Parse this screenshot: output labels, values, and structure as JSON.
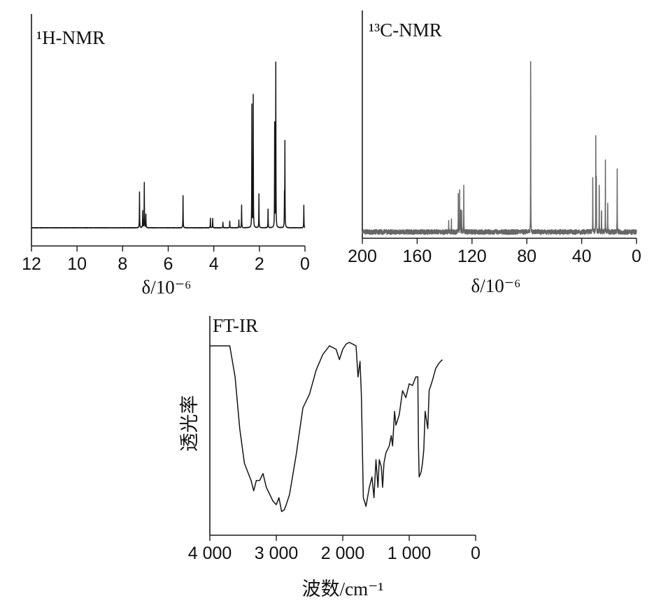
{
  "chart_data": [
    {
      "type": "line",
      "title": "¹H-NMR",
      "xlabel": "δ/10⁻⁶",
      "ylabel": "",
      "x_reversed": true,
      "xlim": [
        12,
        0
      ],
      "xticks": [
        "12",
        "10",
        "8",
        "6",
        "4",
        "2",
        "0"
      ],
      "xtick_values": [
        12,
        10,
        8,
        6,
        4,
        2,
        0
      ],
      "color": "#151515",
      "series": [
        {
          "peaks": [
            {
              "x": 7.26,
              "y": 0.19
            },
            {
              "x": 7.12,
              "y": 0.09
            },
            {
              "x": 7.05,
              "y": 0.24
            },
            {
              "x": 6.98,
              "y": 0.07
            },
            {
              "x": 5.35,
              "y": 0.17
            },
            {
              "x": 4.15,
              "y": 0.05
            },
            {
              "x": 4.05,
              "y": 0.05
            },
            {
              "x": 3.6,
              "y": 0.03
            },
            {
              "x": 3.3,
              "y": 0.035
            },
            {
              "x": 2.9,
              "y": 0.04
            },
            {
              "x": 2.78,
              "y": 0.12
            },
            {
              "x": 2.33,
              "y": 0.65
            },
            {
              "x": 2.27,
              "y": 0.7
            },
            {
              "x": 2.02,
              "y": 0.18
            },
            {
              "x": 1.62,
              "y": 0.1
            },
            {
              "x": 1.33,
              "y": 0.55
            },
            {
              "x": 1.28,
              "y": 0.87
            },
            {
              "x": 0.9,
              "y": 0.16
            },
            {
              "x": 0.88,
              "y": 0.45
            },
            {
              "x": 0.05,
              "y": 0.12
            }
          ]
        }
      ]
    },
    {
      "type": "line",
      "title": "¹³C-NMR",
      "xlabel": "δ/10⁻⁶",
      "ylabel": "",
      "x_reversed": true,
      "xlim": [
        200,
        0
      ],
      "xticks": [
        "200",
        "160",
        "120",
        "80",
        "40",
        "0"
      ],
      "xtick_values": [
        200,
        160,
        120,
        80,
        40,
        0
      ],
      "color": "#666666",
      "series": [
        {
          "peaks": [
            {
              "x": 137,
              "y": 0.06
            },
            {
              "x": 135,
              "y": 0.05
            },
            {
              "x": 130,
              "y": 0.17
            },
            {
              "x": 129,
              "y": 0.18
            },
            {
              "x": 128.5,
              "y": 0.14
            },
            {
              "x": 127.5,
              "y": 0.14
            },
            {
              "x": 126,
              "y": 0.22
            },
            {
              "x": 77.2,
              "y": 0.98
            },
            {
              "x": 31.9,
              "y": 0.28
            },
            {
              "x": 29.7,
              "y": 0.44
            },
            {
              "x": 29.3,
              "y": 0.24
            },
            {
              "x": 27.2,
              "y": 0.27
            },
            {
              "x": 25.5,
              "y": 0.12
            },
            {
              "x": 22.7,
              "y": 0.33
            },
            {
              "x": 21.0,
              "y": 0.12
            },
            {
              "x": 14.1,
              "y": 0.32
            }
          ]
        }
      ]
    },
    {
      "type": "line",
      "title": "FT-IR",
      "xlabel": "波数/cm⁻¹",
      "ylabel": "透光率",
      "x_reversed": true,
      "xlim": [
        4000,
        0
      ],
      "xticks": [
        "4 000",
        "3 000",
        "2 000",
        "1 000",
        "0"
      ],
      "xtick_values": [
        4000,
        3000,
        2000,
        1000,
        0
      ],
      "color": "#151515",
      "series": [
        {
          "x": [
            4000,
            3700,
            3620,
            3550,
            3480,
            3420,
            3380,
            3340,
            3300,
            3250,
            3200,
            3150,
            3100,
            3050,
            3000,
            2960,
            2920,
            2880,
            2850,
            2800,
            2700,
            2600,
            2500,
            2400,
            2300,
            2200,
            2100,
            2050,
            2000,
            1950,
            1900,
            1850,
            1800,
            1770,
            1740,
            1720,
            1700,
            1690,
            1650,
            1600,
            1560,
            1530,
            1500,
            1470,
            1450,
            1420,
            1400,
            1380,
            1350,
            1300,
            1270,
            1250,
            1220,
            1200,
            1150,
            1100,
            1050,
            1000,
            950,
            900,
            870,
            860,
            850,
            820,
            800,
            780,
            760,
            720,
            700,
            650,
            600,
            550,
            500
          ],
          "y": [
            0.98,
            0.98,
            0.8,
            0.5,
            0.3,
            0.24,
            0.2,
            0.14,
            0.2,
            0.2,
            0.24,
            0.16,
            0.12,
            0.08,
            0.06,
            0.1,
            0.02,
            0.03,
            0.06,
            0.12,
            0.35,
            0.62,
            0.7,
            0.84,
            0.93,
            0.98,
            0.96,
            0.9,
            0.96,
            0.99,
            1.0,
            0.99,
            0.98,
            0.8,
            0.89,
            0.7,
            0.3,
            0.1,
            0.05,
            0.16,
            0.22,
            0.1,
            0.32,
            0.16,
            0.32,
            0.28,
            0.16,
            0.3,
            0.36,
            0.4,
            0.46,
            0.4,
            0.6,
            0.52,
            0.58,
            0.72,
            0.68,
            0.76,
            0.75,
            0.8,
            0.8,
            0.4,
            0.22,
            0.25,
            0.3,
            0.38,
            0.6,
            0.5,
            0.72,
            0.78,
            0.85,
            0.88,
            0.9
          ]
        }
      ]
    }
  ]
}
